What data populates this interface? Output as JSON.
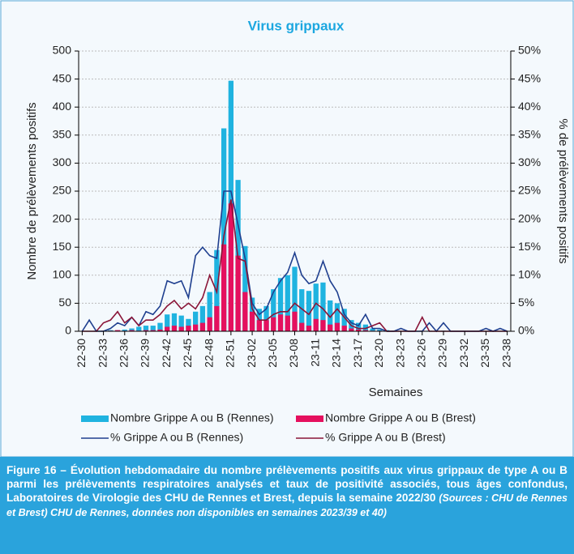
{
  "chart_data": {
    "type": "bar",
    "title": "Virus grippaux",
    "x_label": "Semaines",
    "y_label": "Nombre de prélèvements positifs",
    "y2_label": "% de prélèvements positifs",
    "categories": [
      "22-30",
      null,
      null,
      "22-33",
      null,
      null,
      "22-36",
      null,
      null,
      "22-39",
      null,
      null,
      "22-42",
      null,
      null,
      "22-45",
      null,
      null,
      "22-48",
      null,
      null,
      "22-51",
      null,
      null,
      "23-02",
      null,
      null,
      "23-05",
      null,
      null,
      "23-08",
      null,
      null,
      "23-11",
      null,
      null,
      "23-14",
      null,
      null,
      "23-17",
      null,
      null,
      "23-20",
      null,
      null,
      "23-23",
      null,
      null,
      "23-26",
      null,
      null,
      "23-29",
      null,
      null,
      "23-32",
      null,
      null,
      "23-35",
      null,
      null,
      "23-38"
    ],
    "ylim": [
      0,
      500
    ],
    "yticks": [
      0,
      50,
      100,
      150,
      200,
      250,
      300,
      350,
      400,
      450,
      500
    ],
    "y2lim": [
      0,
      50
    ],
    "y2ticks": [
      {
        "value": 0,
        "label": "0%"
      },
      {
        "value": 5,
        "label": "5%"
      },
      {
        "value": 10,
        "label": "10%"
      },
      {
        "value": 15,
        "label": "15%"
      },
      {
        "value": 20,
        "label": "20%"
      },
      {
        "value": 25,
        "label": "25%"
      },
      {
        "value": 30,
        "label": "30%"
      },
      {
        "value": 35,
        "label": "35%"
      },
      {
        "value": 40,
        "label": "40%"
      },
      {
        "value": 45,
        "label": "45%"
      },
      {
        "value": 50,
        "label": "50%"
      }
    ],
    "grid": true,
    "series": [
      {
        "name": "Nombre Grippe A ou B (Rennes)",
        "type": "bar",
        "color": "#1fb3e0",
        "values": [
          0,
          0,
          1,
          1,
          2,
          2,
          3,
          5,
          8,
          10,
          10,
          15,
          30,
          32,
          28,
          22,
          35,
          45,
          70,
          145,
          362,
          447,
          270,
          152,
          60,
          40,
          45,
          75,
          95,
          100,
          115,
          75,
          72,
          85,
          87,
          55,
          50,
          40,
          20,
          15,
          12,
          5,
          3,
          2,
          1,
          0,
          0,
          0,
          0,
          1,
          0,
          1,
          0,
          0,
          0,
          0,
          0,
          0,
          0,
          0,
          0
        ]
      },
      {
        "name": "Nombre Grippe A ou B (Brest)",
        "type": "bar",
        "color": "#e5105e",
        "values": [
          0,
          0,
          0,
          1,
          1,
          2,
          1,
          2,
          1,
          2,
          2,
          3,
          8,
          10,
          8,
          10,
          12,
          15,
          25,
          45,
          155,
          228,
          135,
          70,
          35,
          20,
          20,
          25,
          30,
          28,
          35,
          15,
          10,
          22,
          20,
          12,
          15,
          10,
          5,
          3,
          2,
          1,
          1,
          0,
          0,
          0,
          0,
          0,
          1,
          0,
          0,
          0,
          0,
          0,
          0,
          0,
          0,
          0,
          0,
          0,
          0
        ]
      },
      {
        "name": "% Grippe A ou B (Rennes)",
        "type": "line",
        "axis": "y2",
        "color": "#1f3f8f",
        "values": [
          0,
          2,
          0,
          0,
          0.5,
          1.5,
          1,
          2.5,
          1,
          3.5,
          3,
          4.5,
          9,
          8.5,
          9,
          6,
          13.5,
          15,
          13.5,
          13,
          25,
          25,
          19,
          13,
          5,
          3,
          4,
          7,
          9,
          10.5,
          14,
          10,
          8.5,
          9,
          12.5,
          9,
          7,
          3,
          1.5,
          1,
          3,
          0.5,
          0.5,
          0,
          0,
          0.5,
          0,
          0,
          0,
          1.5,
          0,
          1.5,
          0,
          0,
          0,
          0,
          0,
          0.5,
          0,
          0.5,
          0
        ]
      },
      {
        "name": "% Grippe A ou B (Brest)",
        "type": "line",
        "axis": "y2",
        "color": "#8a1538",
        "values": [
          0,
          0,
          0,
          1.5,
          2,
          3.5,
          1.5,
          2.5,
          1,
          2,
          2,
          3,
          4.5,
          5.5,
          4,
          5,
          4,
          6,
          10,
          7,
          17,
          23.5,
          13,
          12.5,
          4,
          2,
          2,
          3,
          3.5,
          3.5,
          5,
          4,
          3,
          5,
          4,
          2.5,
          4,
          2.5,
          1,
          0.5,
          0.5,
          1,
          1.5,
          0,
          0,
          0,
          0,
          0,
          2.5,
          0,
          0,
          0,
          0,
          0,
          0,
          0,
          0,
          0,
          0,
          0,
          0
        ]
      }
    ]
  },
  "caption": {
    "text": "Figure 16 – Évolution hebdomadaire du nombre prélèvements positifs aux virus grippaux de type A ou B parmi les prélèvements respiratoires analysés et taux de positivité associés, tous âges confondus, Laboratoires de Virologie des CHU de Rennes et Brest, depuis la semaine 2022/30",
    "source": "(Sources : CHU de Rennes et Brest) CHU de Rennes, données non disponibles en semaines 2023/39 et 40)"
  }
}
